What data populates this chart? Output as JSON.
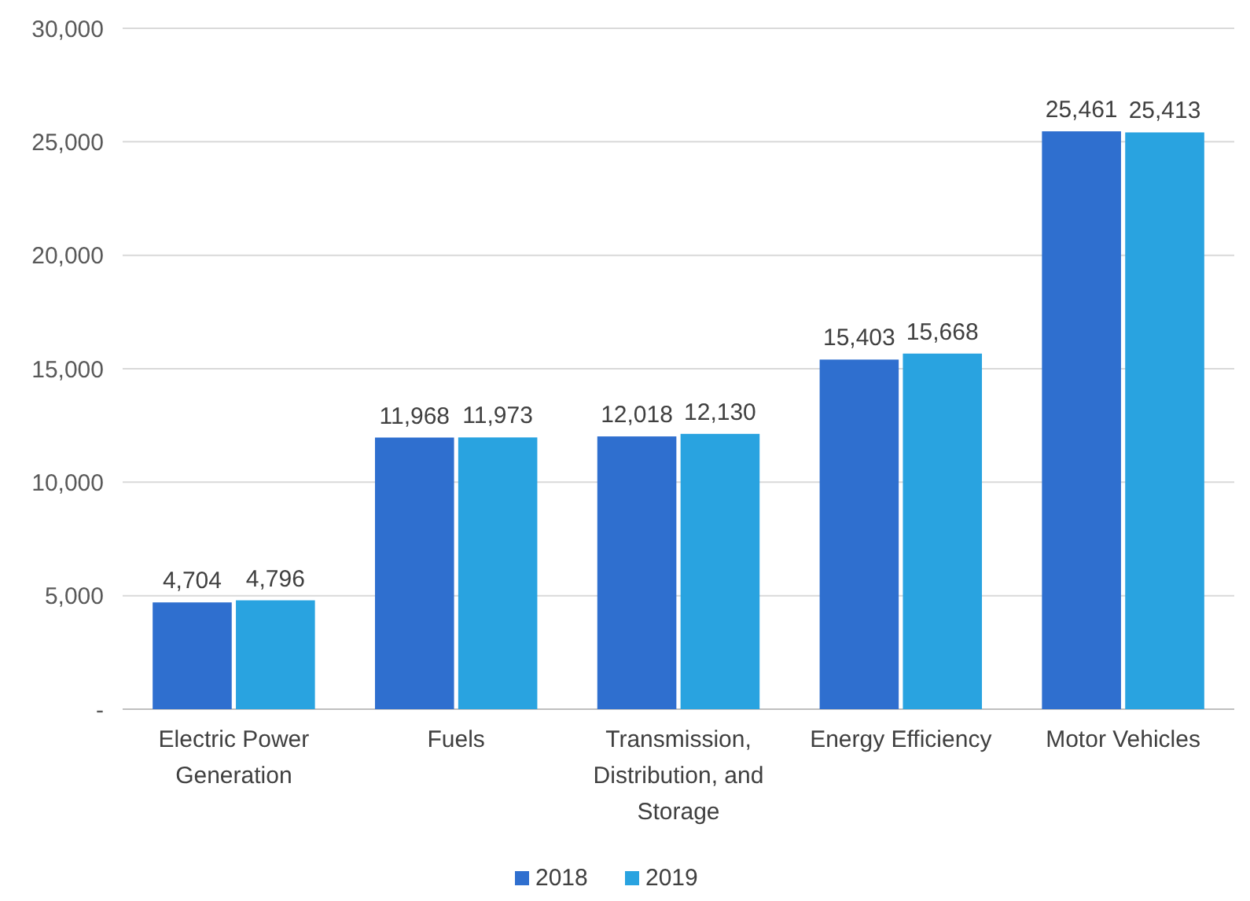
{
  "chart_data": {
    "type": "bar",
    "categories": [
      "Electric Power Generation",
      "Fuels",
      "Transmission, Distribution, and Storage",
      "Energy Efficiency",
      "Motor Vehicles"
    ],
    "series": [
      {
        "name": "2018",
        "color": "#2f6fcf",
        "values": [
          4704,
          11968,
          12018,
          15403,
          25461
        ],
        "value_labels": [
          "4,704",
          "11,968",
          "12,018",
          "15,403",
          "25,461"
        ]
      },
      {
        "name": "2019",
        "color": "#29a3e0",
        "values": [
          4796,
          11973,
          12130,
          15668,
          25413
        ],
        "value_labels": [
          "4,796",
          "11,973",
          "12,130",
          "15,668",
          "25,413"
        ]
      }
    ],
    "ylim": [
      0,
      30000
    ],
    "yticks": [
      {
        "value": 0,
        "label": "-"
      },
      {
        "value": 5000,
        "label": "5,000"
      },
      {
        "value": 10000,
        "label": "10,000"
      },
      {
        "value": 15000,
        "label": "15,000"
      },
      {
        "value": 20000,
        "label": "20,000"
      },
      {
        "value": 25000,
        "label": "25,000"
      },
      {
        "value": 30000,
        "label": "30,000"
      }
    ],
    "grid": "y",
    "legend": "bottom"
  }
}
